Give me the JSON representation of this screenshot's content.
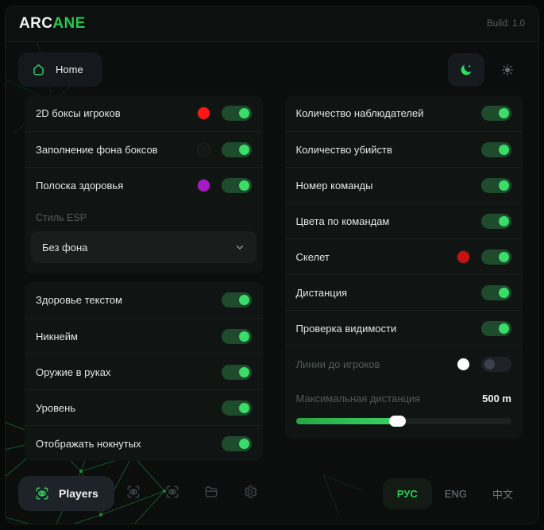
{
  "header": {
    "logo_primary": "ARC",
    "logo_accent": "ANE",
    "build_label": "Build: 1.0"
  },
  "toolbar": {
    "home_label": "Home",
    "theme_dark_icon": "moon-icon",
    "theme_light_icon": "sun-icon",
    "theme_active": "dark"
  },
  "columns": {
    "left": {
      "sections": [
        {
          "rows": [
            {
              "id": "2d-player-boxes",
              "type": "toggle",
              "label": "2D боксы игроков",
              "swatch": "#ff1717",
              "on": true
            },
            {
              "id": "box-background-fill",
              "type": "toggle",
              "label": "Заполнение фона боксов",
              "swatch": "#161616",
              "on": true
            },
            {
              "id": "health-bar",
              "type": "toggle",
              "label": "Полоска здоровья",
              "swatch": "#a819c6",
              "on": true
            },
            {
              "id": "esp-style-label",
              "type": "label",
              "label": "Стиль ESP"
            },
            {
              "id": "esp-style",
              "type": "select",
              "value": "Без фона"
            }
          ]
        },
        {
          "rows": [
            {
              "id": "health-text",
              "type": "toggle",
              "label": "Здоровье текстом",
              "on": true
            },
            {
              "id": "nickname",
              "type": "toggle",
              "label": "Никнейм",
              "on": true
            },
            {
              "id": "weapon-in-hands",
              "type": "toggle",
              "label": "Оружие в руках",
              "on": true
            },
            {
              "id": "level",
              "type": "toggle",
              "label": "Уровень",
              "on": true
            },
            {
              "id": "show-knocked",
              "type": "toggle",
              "label": "Отображать нокнутых",
              "on": true
            }
          ]
        }
      ]
    },
    "right": {
      "sections": [
        {
          "rows": [
            {
              "id": "spectator-count",
              "type": "toggle",
              "label": "Количество наблюдателей",
              "on": true
            },
            {
              "id": "kill-count",
              "type": "toggle",
              "label": "Количество убийств",
              "on": true
            },
            {
              "id": "team-number",
              "type": "toggle",
              "label": "Номер команды",
              "on": true
            },
            {
              "id": "team-colors",
              "type": "toggle",
              "label": "Цвета по командам",
              "on": true
            },
            {
              "id": "skeleton",
              "type": "toggle",
              "label": "Скелет",
              "swatch": "#c91111",
              "on": true
            },
            {
              "id": "distance",
              "type": "toggle",
              "label": "Дистанция",
              "on": true
            },
            {
              "id": "visibility-check",
              "type": "toggle",
              "label": "Проверка видимости",
              "on": true
            },
            {
              "id": "lines-to-players",
              "type": "toggle",
              "label": "Линии до игроков",
              "swatch": "#ffffff",
              "on": false,
              "disabled": true
            },
            {
              "id": "max-distance",
              "type": "slider",
              "label": "Максимальная дистанция",
              "value": "500 m",
              "percent": 47,
              "disabled": true
            }
          ]
        }
      ]
    }
  },
  "bottom": {
    "players_label": "Players",
    "players_icon": "scan-eye-icon",
    "nav_icons": [
      "scan-eye-icon",
      "scan-eye-icon",
      "folder-icon",
      "gear-icon"
    ],
    "languages": [
      {
        "id": "rus",
        "label": "РУС",
        "active": true
      },
      {
        "id": "eng",
        "label": "ENG",
        "active": false
      },
      {
        "id": "zh",
        "label": "中文",
        "active": false
      }
    ]
  },
  "colors": {
    "accent_green": "#2ecc5a",
    "toggle_on_track": "#1d4b2c",
    "toggle_knob_on": "#3bdc68",
    "window_bg": "#0b0e0d",
    "section_bg": "#101514",
    "slider_fill": "#38d563"
  }
}
